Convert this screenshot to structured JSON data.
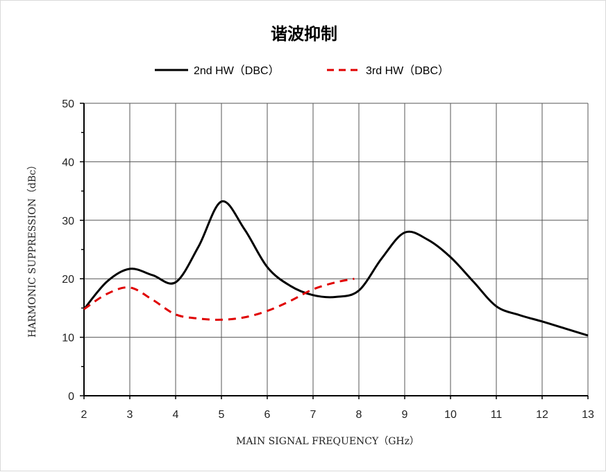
{
  "chart_data": {
    "type": "line",
    "title": "谐波抑制",
    "xlabel": "MAIN SIGNAL FREQUENCY（GHz）",
    "ylabel": "HARMONIC SUPPRESSION（dBc）",
    "xlim": [
      2,
      13
    ],
    "ylim": [
      0,
      50
    ],
    "xticks": [
      2,
      3,
      4,
      5,
      6,
      7,
      8,
      9,
      10,
      11,
      12,
      13
    ],
    "yticks": [
      0,
      10,
      20,
      30,
      40,
      50
    ],
    "grid": true,
    "legend_position": "top-center",
    "series": [
      {
        "name": "2nd HW（DBC）",
        "color": "#000000",
        "style": "solid",
        "x": [
          2,
          2.5,
          3,
          3.5,
          4,
          4.5,
          5,
          5.5,
          6,
          6.5,
          7,
          7.5,
          8,
          8.5,
          9,
          9.5,
          10,
          10.5,
          11,
          11.5,
          12,
          12.5,
          13
        ],
        "y": [
          14.8,
          19.5,
          21.7,
          20.6,
          19.4,
          25.5,
          33.2,
          28.5,
          22.0,
          18.8,
          17.2,
          16.9,
          18.0,
          23.5,
          27.9,
          26.7,
          23.7,
          19.5,
          15.3,
          13.8,
          12.7,
          11.5,
          10.3
        ]
      },
      {
        "name": "3rd HW（DBC）",
        "color": "#e00000",
        "style": "dashed",
        "x": [
          2,
          2.5,
          3,
          3.5,
          4,
          4.5,
          5,
          5.5,
          6,
          6.5,
          7,
          7.5,
          7.9
        ],
        "y": [
          14.8,
          17.4,
          18.5,
          16.4,
          13.9,
          13.2,
          13.0,
          13.4,
          14.5,
          16.2,
          18.2,
          19.4,
          20.0
        ]
      }
    ]
  }
}
